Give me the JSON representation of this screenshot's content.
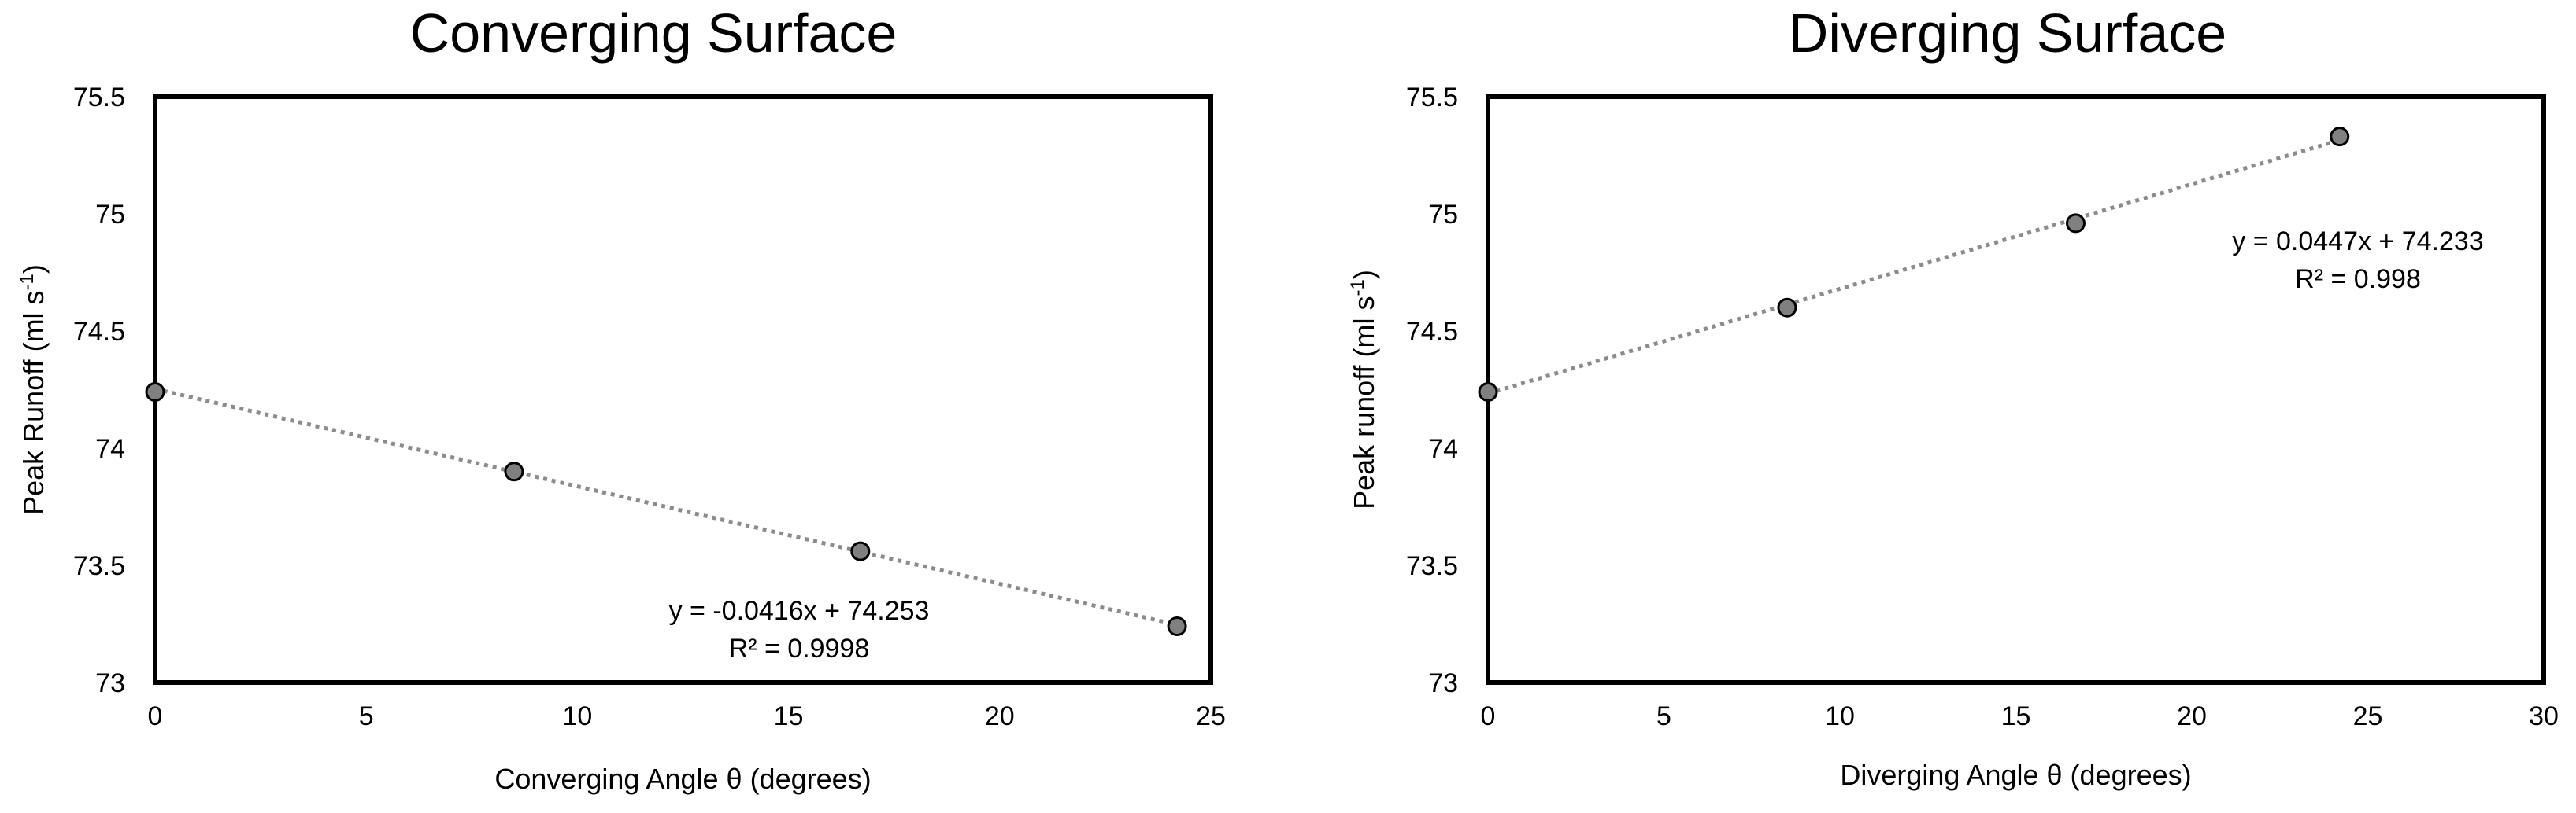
{
  "chart_data": [
    {
      "type": "scatter",
      "title": "Converging Surface",
      "xlabel": "Converging Angle θ (degrees)",
      "ylabel": "Peak Runoff (ml s",
      "ylabel_sup": "-1",
      "ylabel_tail": ")",
      "xlim": [
        0,
        25
      ],
      "ylim": [
        73,
        75.5
      ],
      "xticks": [
        "0",
        "5",
        "10",
        "15",
        "20",
        "25"
      ],
      "yticks": [
        "73",
        "73.5",
        "74",
        "74.5",
        "75",
        "75.5"
      ],
      "grid": false,
      "series": [
        {
          "x": [
            0,
            8.5,
            16.7,
            24.2
          ],
          "y": [
            74.24,
            73.9,
            73.56,
            73.24
          ],
          "marker_color": "#808080",
          "trendline": {
            "type": "linear",
            "slope": -0.0416,
            "intercept": 74.253,
            "color": "#8c8c8c"
          }
        }
      ],
      "annotation": {
        "equation": "y = -0.0416x + 74.253",
        "r2": "R² = 0.9998"
      }
    },
    {
      "type": "scatter",
      "title": "Diverging Surface",
      "xlabel": "Diverging Angle θ (degrees)",
      "ylabel": "Peak runoff (ml s",
      "ylabel_sup": "-1",
      "ylabel_tail": ")",
      "xlim": [
        0,
        30
      ],
      "ylim": [
        73,
        75.5
      ],
      "xticks": [
        "0",
        "5",
        "10",
        "15",
        "20",
        "25",
        "30"
      ],
      "yticks": [
        "73",
        "73.5",
        "74",
        "74.5",
        "75",
        "75.5"
      ],
      "grid": false,
      "series": [
        {
          "x": [
            0,
            8.5,
            16.7,
            24.2
          ],
          "y": [
            74.24,
            74.6,
            74.96,
            75.33
          ],
          "marker_color": "#808080",
          "trendline": {
            "type": "linear",
            "slope": 0.0447,
            "intercept": 74.233,
            "color": "#8c8c8c"
          }
        }
      ],
      "annotation": {
        "equation": "y = 0.0447x + 74.233",
        "r2": "R² = 0.998"
      }
    }
  ]
}
